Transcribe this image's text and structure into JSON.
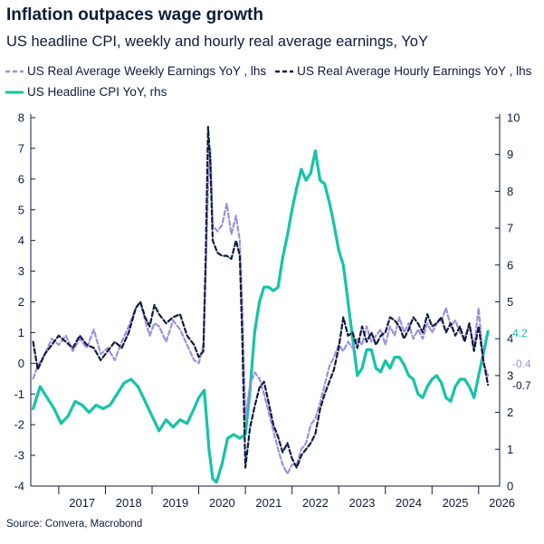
{
  "title": "Inflation outpaces wage growth",
  "subtitle": "US headline CPI, weekly and hourly real average earnings, YoY",
  "source": "Source: Convera, Macrobond",
  "colors": {
    "weekly": "#9b8fe0",
    "hourly": "#0d1b3d",
    "cpi": "#14c4a8",
    "axis": "#0d1b3d"
  },
  "chart_data": {
    "type": "line",
    "xlim": [
      2016.4,
      2026.45
    ],
    "x_ticks": [
      "2017",
      "2018",
      "2019",
      "2020",
      "2021",
      "2022",
      "2023",
      "2024",
      "2025",
      "2026"
    ],
    "y_left": {
      "lim": [
        -4,
        8
      ],
      "ticks": [
        "8",
        "7",
        "6",
        "5",
        "4",
        "3",
        "2",
        "1",
        "0",
        "-1",
        "-2",
        "-3",
        "-4"
      ]
    },
    "y_right": {
      "lim": [
        0,
        10
      ],
      "ticks": [
        "10",
        "9",
        "8",
        "7",
        "6",
        "5",
        "4",
        "3",
        "2",
        "1",
        "0"
      ]
    },
    "end_labels": {
      "cpi": "4.2",
      "weekly": "-0.4",
      "hourly": "-0.7"
    },
    "series": [
      {
        "name": "US Real Average Weekly Earnings YoY , lhs",
        "axis": "left",
        "style": "dashed",
        "x": [
          2016.45,
          2016.55,
          2016.7,
          2016.85,
          2017.0,
          2017.15,
          2017.3,
          2017.45,
          2017.6,
          2017.75,
          2017.9,
          2018.05,
          2018.2,
          2018.35,
          2018.5,
          2018.65,
          2018.75,
          2018.85,
          2018.95,
          2019.05,
          2019.15,
          2019.3,
          2019.45,
          2019.6,
          2019.75,
          2019.9,
          2020.0,
          2020.1,
          2020.15,
          2020.2,
          2020.25,
          2020.3,
          2020.4,
          2020.5,
          2020.6,
          2020.7,
          2020.8,
          2020.88,
          2020.93,
          2021.0,
          2021.1,
          2021.2,
          2021.3,
          2021.4,
          2021.5,
          2021.6,
          2021.7,
          2021.8,
          2021.9,
          2022.0,
          2022.1,
          2022.2,
          2022.3,
          2022.4,
          2022.5,
          2022.6,
          2022.7,
          2022.8,
          2022.9,
          2023.0,
          2023.1,
          2023.2,
          2023.3,
          2023.4,
          2023.5,
          2023.6,
          2023.7,
          2023.8,
          2023.9,
          2024.0,
          2024.1,
          2024.2,
          2024.3,
          2024.4,
          2024.5,
          2024.6,
          2024.7,
          2024.8,
          2024.9,
          2025.0,
          2025.1,
          2025.2,
          2025.3,
          2025.4,
          2025.5,
          2025.6,
          2025.7,
          2025.8,
          2025.9,
          2026.0,
          2026.1,
          2026.2
        ],
        "values": [
          -0.5,
          -0.1,
          0.3,
          0.8,
          0.6,
          0.9,
          0.4,
          0.8,
          0.5,
          1.1,
          0.3,
          0.5,
          0.1,
          0.7,
          1.2,
          1.8,
          2.0,
          1.4,
          0.9,
          1.3,
          1.2,
          0.7,
          1.4,
          1.1,
          0.6,
          0.1,
          0.0,
          0.6,
          3.0,
          5.8,
          7.0,
          4.5,
          4.3,
          4.5,
          5.2,
          4.2,
          4.8,
          4.0,
          2.0,
          -1.8,
          -0.7,
          -0.3,
          -0.5,
          -1.0,
          -1.6,
          -2.2,
          -2.8,
          -3.3,
          -3.6,
          -3.3,
          -3.3,
          -2.8,
          -2.6,
          -2.0,
          -1.8,
          -1.3,
          -0.7,
          -0.1,
          0.2,
          0.6,
          0.4,
          0.7,
          0.5,
          0.8,
          0.6,
          1.2,
          0.7,
          0.9,
          1.1,
          0.6,
          1.2,
          0.9,
          1.5,
          1.0,
          1.3,
          0.8,
          1.1,
          0.8,
          1.3,
          1.0,
          1.3,
          1.4,
          1.8,
          1.2,
          1.4,
          1.0,
          0.8,
          1.3,
          0.5,
          1.8,
          0.0,
          -0.4
        ]
      },
      {
        "name": "US Real Average Hourly Earnings YoY , lhs",
        "axis": "left",
        "style": "dashed",
        "x": [
          2016.45,
          2016.55,
          2016.7,
          2016.85,
          2017.0,
          2017.15,
          2017.3,
          2017.45,
          2017.6,
          2017.75,
          2017.9,
          2018.05,
          2018.2,
          2018.35,
          2018.5,
          2018.65,
          2018.75,
          2018.85,
          2018.95,
          2019.05,
          2019.15,
          2019.3,
          2019.45,
          2019.6,
          2019.75,
          2019.9,
          2020.0,
          2020.1,
          2020.15,
          2020.2,
          2020.25,
          2020.3,
          2020.4,
          2020.5,
          2020.6,
          2020.7,
          2020.8,
          2020.88,
          2020.93,
          2021.0,
          2021.1,
          2021.2,
          2021.3,
          2021.4,
          2021.5,
          2021.6,
          2021.7,
          2021.8,
          2021.9,
          2022.0,
          2022.1,
          2022.2,
          2022.3,
          2022.4,
          2022.5,
          2022.6,
          2022.7,
          2022.8,
          2022.9,
          2023.0,
          2023.1,
          2023.2,
          2023.3,
          2023.4,
          2023.5,
          2023.6,
          2023.7,
          2023.8,
          2023.9,
          2024.0,
          2024.1,
          2024.2,
          2024.3,
          2024.4,
          2024.5,
          2024.6,
          2024.7,
          2024.8,
          2024.9,
          2025.0,
          2025.1,
          2025.2,
          2025.3,
          2025.4,
          2025.5,
          2025.6,
          2025.7,
          2025.8,
          2025.9,
          2026.0,
          2026.1,
          2026.2
        ],
        "values": [
          0.7,
          -0.2,
          0.3,
          0.6,
          0.9,
          0.7,
          0.5,
          0.9,
          0.6,
          0.5,
          0.1,
          0.4,
          0.7,
          0.5,
          1.0,
          1.8,
          2.0,
          1.5,
          1.2,
          1.9,
          1.6,
          1.3,
          1.5,
          1.6,
          0.9,
          0.6,
          0.2,
          0.4,
          3.5,
          7.7,
          6.5,
          4.0,
          3.6,
          3.5,
          3.5,
          3.4,
          4.0,
          3.5,
          1.0,
          -3.4,
          -2.1,
          -1.4,
          -0.8,
          -0.6,
          -1.3,
          -2.0,
          -2.4,
          -2.9,
          -2.6,
          -3.1,
          -3.4,
          -3.0,
          -2.8,
          -2.6,
          -2.3,
          -1.5,
          -1.0,
          -0.6,
          -0.2,
          0.5,
          1.5,
          0.9,
          1.0,
          0.5,
          1.2,
          0.7,
          1.0,
          0.6,
          0.9,
          1.0,
          1.5,
          1.4,
          1.2,
          0.8,
          1.1,
          1.5,
          1.3,
          1.0,
          1.6,
          1.2,
          1.3,
          1.5,
          1.0,
          1.3,
          0.9,
          1.2,
          0.7,
          1.3,
          0.4,
          1.2,
          0.1,
          -0.7
        ]
      },
      {
        "name": "US Headline CPI YoY, rhs",
        "axis": "right",
        "style": "solid",
        "x": [
          2016.45,
          2016.6,
          2016.75,
          2016.9,
          2017.05,
          2017.2,
          2017.35,
          2017.5,
          2017.65,
          2017.8,
          2017.95,
          2018.1,
          2018.25,
          2018.4,
          2018.55,
          2018.7,
          2018.85,
          2019.0,
          2019.15,
          2019.3,
          2019.45,
          2019.6,
          2019.75,
          2019.9,
          2020.0,
          2020.12,
          2020.22,
          2020.3,
          2020.38,
          2020.5,
          2020.62,
          2020.75,
          2020.88,
          2021.0,
          2021.1,
          2021.2,
          2021.3,
          2021.4,
          2021.5,
          2021.6,
          2021.7,
          2021.8,
          2021.9,
          2022.0,
          2022.1,
          2022.2,
          2022.3,
          2022.4,
          2022.5,
          2022.6,
          2022.7,
          2022.8,
          2022.9,
          2023.0,
          2023.1,
          2023.2,
          2023.3,
          2023.4,
          2023.5,
          2023.6,
          2023.7,
          2023.8,
          2023.9,
          2024.0,
          2024.1,
          2024.2,
          2024.3,
          2024.4,
          2024.5,
          2024.6,
          2024.7,
          2024.8,
          2024.9,
          2025.0,
          2025.1,
          2025.2,
          2025.3,
          2025.4,
          2025.5,
          2025.6,
          2025.7,
          2025.8,
          2025.9,
          2026.0,
          2026.1,
          2026.2
        ],
        "values": [
          2.1,
          2.7,
          2.4,
          2.1,
          1.7,
          1.9,
          2.3,
          2.2,
          2.0,
          2.2,
          2.1,
          2.2,
          2.5,
          2.8,
          2.9,
          2.7,
          2.3,
          1.9,
          1.5,
          1.8,
          1.6,
          1.8,
          1.7,
          2.1,
          2.4,
          2.6,
          1.0,
          0.2,
          0.1,
          0.6,
          1.3,
          1.4,
          1.3,
          1.4,
          2.6,
          4.2,
          5.0,
          5.4,
          5.4,
          5.3,
          5.4,
          6.2,
          6.8,
          7.5,
          8.1,
          8.6,
          8.3,
          8.5,
          9.1,
          8.3,
          8.2,
          7.7,
          7.1,
          6.4,
          6.0,
          5.0,
          4.0,
          3.0,
          3.2,
          3.7,
          3.7,
          3.2,
          3.1,
          3.4,
          3.2,
          3.5,
          3.5,
          3.3,
          3.0,
          2.9,
          2.5,
          2.4,
          2.7,
          2.9,
          3.0,
          2.8,
          2.4,
          2.3,
          2.7,
          2.9,
          2.9,
          2.7,
          2.4,
          3.0,
          3.6,
          4.2
        ]
      }
    ]
  }
}
